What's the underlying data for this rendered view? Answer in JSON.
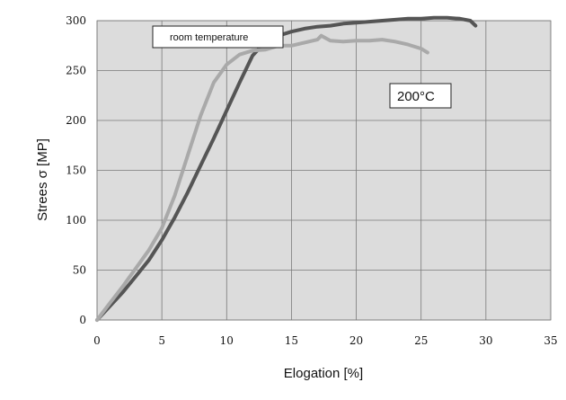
{
  "chart_data": {
    "type": "line",
    "title": "",
    "xlabel": "Elogation [%]",
    "ylabel": "Strees σ [MP]",
    "xlim": [
      0,
      35
    ],
    "ylim": [
      0,
      300
    ],
    "xticks": [
      "0",
      "5",
      "10",
      "15",
      "20",
      "25",
      "30",
      "35"
    ],
    "yticks": [
      "0",
      "50",
      "100",
      "150",
      "200",
      "250",
      "300"
    ],
    "grid": true,
    "background": "#dcdcdc",
    "annotations": [
      {
        "text": "room temperature",
        "series": "dark-curve"
      },
      {
        "text": "200°C",
        "series": "light-curve"
      }
    ],
    "series": [
      {
        "color": "#555555",
        "points": [
          [
            0,
            0
          ],
          [
            1,
            14
          ],
          [
            2,
            28
          ],
          [
            3,
            44
          ],
          [
            4,
            60
          ],
          [
            5,
            80
          ],
          [
            6,
            103
          ],
          [
            7,
            128
          ],
          [
            8,
            155
          ],
          [
            9,
            182
          ],
          [
            10,
            210
          ],
          [
            11,
            238
          ],
          [
            12,
            265
          ],
          [
            13,
            279
          ],
          [
            14,
            285
          ],
          [
            15,
            289
          ],
          [
            16,
            292
          ],
          [
            17,
            294
          ],
          [
            18,
            295
          ],
          [
            19,
            297
          ],
          [
            20,
            298
          ],
          [
            21,
            299
          ],
          [
            22,
            300
          ],
          [
            23,
            301
          ],
          [
            24,
            302
          ],
          [
            25,
            302
          ],
          [
            26,
            303
          ],
          [
            27,
            303
          ],
          [
            28,
            302
          ],
          [
            28.8,
            300
          ],
          [
            29.2,
            295
          ]
        ]
      },
      {
        "color": "#a9a9a9",
        "points": [
          [
            0,
            0
          ],
          [
            1,
            17
          ],
          [
            2,
            34
          ],
          [
            3,
            52
          ],
          [
            4,
            70
          ],
          [
            5,
            92
          ],
          [
            6,
            125
          ],
          [
            7,
            165
          ],
          [
            8,
            205
          ],
          [
            9,
            238
          ],
          [
            10,
            256
          ],
          [
            11,
            266
          ],
          [
            12,
            270
          ],
          [
            13,
            271
          ],
          [
            14,
            275
          ],
          [
            15,
            275
          ],
          [
            16,
            278
          ],
          [
            17,
            281
          ],
          [
            17.3,
            285
          ],
          [
            18,
            280
          ],
          [
            19,
            279
          ],
          [
            20,
            280
          ],
          [
            21,
            280
          ],
          [
            22,
            281
          ],
          [
            23,
            279
          ],
          [
            24,
            276
          ],
          [
            25,
            272
          ],
          [
            25.5,
            268
          ]
        ]
      }
    ]
  }
}
